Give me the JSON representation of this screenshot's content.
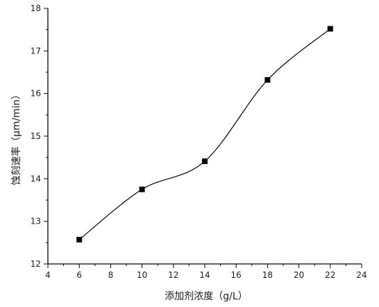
{
  "chart_data": {
    "type": "line",
    "title": "",
    "xlabel": "添加剂浓度（g/L）",
    "ylabel": "蚀刻速率（μm/min）",
    "xlim": [
      4,
      24
    ],
    "ylim": [
      12,
      18
    ],
    "x_ticks": [
      4,
      6,
      8,
      10,
      12,
      14,
      16,
      18,
      20,
      22,
      24
    ],
    "y_ticks": [
      12,
      13,
      14,
      15,
      16,
      17,
      18
    ],
    "x": [
      6,
      10,
      14,
      18,
      22
    ],
    "series": [
      {
        "values": [
          12.57,
          13.75,
          14.41,
          16.32,
          17.52
        ]
      }
    ],
    "marker": "square",
    "line_style": "smooth",
    "grid": false,
    "legend": "none",
    "colors": {
      "line": "#000000",
      "marker": "#000000",
      "axis": "#000000"
    }
  }
}
